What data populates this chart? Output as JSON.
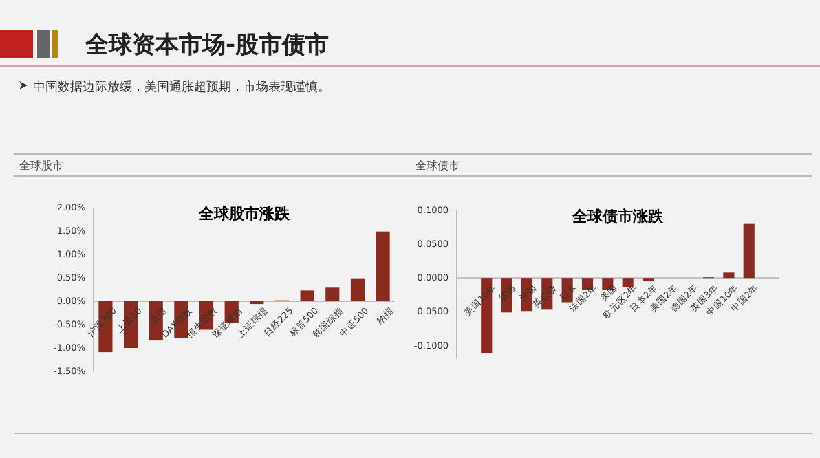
{
  "chart_data": [
    {
      "type": "bar",
      "title": "全球股市涨跌",
      "annotations": [
        "全球资本市场-股市债市",
        "中国数据边际放缓，美国通胀超预期，市场表现谨慎。",
        "全球股市"
      ],
      "categories": [
        "沪深300",
        "上证50",
        "道指",
        "DAX指数",
        "恒生指数",
        "深证成指",
        "上证综指",
        "日经225",
        "标普500",
        "韩国综指",
        "中证500",
        "纳指"
      ],
      "values": [
        -1.09,
        -1.0,
        -0.84,
        -0.78,
        -0.61,
        -0.46,
        -0.06,
        0.02,
        0.23,
        0.29,
        0.49,
        1.49
      ],
      "color": "#8b2a1e",
      "ylim": [
        -1.5,
        2
      ],
      "yticks": [
        {
          "value": -1.5,
          "label": "-1.50%"
        },
        {
          "value": -1,
          "label": "-1.00%"
        },
        {
          "value": -0.5,
          "label": "-0.50%"
        },
        {
          "value": 0,
          "label": "0.00%"
        },
        {
          "value": 0.5,
          "label": "0.50%"
        },
        {
          "value": 1,
          "label": "1.00%"
        },
        {
          "value": 1.5,
          "label": "1.50%"
        },
        {
          "value": 2,
          "label": "2.00%"
        }
      ],
      "grid": false
    },
    {
      "type": "bar",
      "title": "全球债市涨跌",
      "annotations": [
        "全球债市"
      ],
      "categories": [
        "美国10年",
        "德国",
        "法国",
        "英公债",
        "日本",
        "法国2年",
        "美国",
        "欧元区2年",
        "日本2年",
        "美国2年",
        "德国2年",
        "英国3年",
        "中国10年",
        "中国2年"
      ],
      "values": [
        -0.111,
        -0.051,
        -0.049,
        -0.047,
        -0.036,
        -0.018,
        -0.018,
        -0.014,
        -0.005,
        0,
        0,
        0.001,
        0.008,
        0.08
      ],
      "color": "#8b2a1e",
      "ylim": [
        -0.12,
        0.1
      ],
      "yticks": [
        {
          "value": -0.1,
          "label": "-0.1000"
        },
        {
          "value": -0.05,
          "label": "-0.0500"
        },
        {
          "value": 0,
          "label": "0.0000"
        },
        {
          "value": 0.05,
          "label": "0.0500"
        },
        {
          "value": 0.1,
          "label": "0.1000"
        }
      ],
      "grid": false
    }
  ]
}
